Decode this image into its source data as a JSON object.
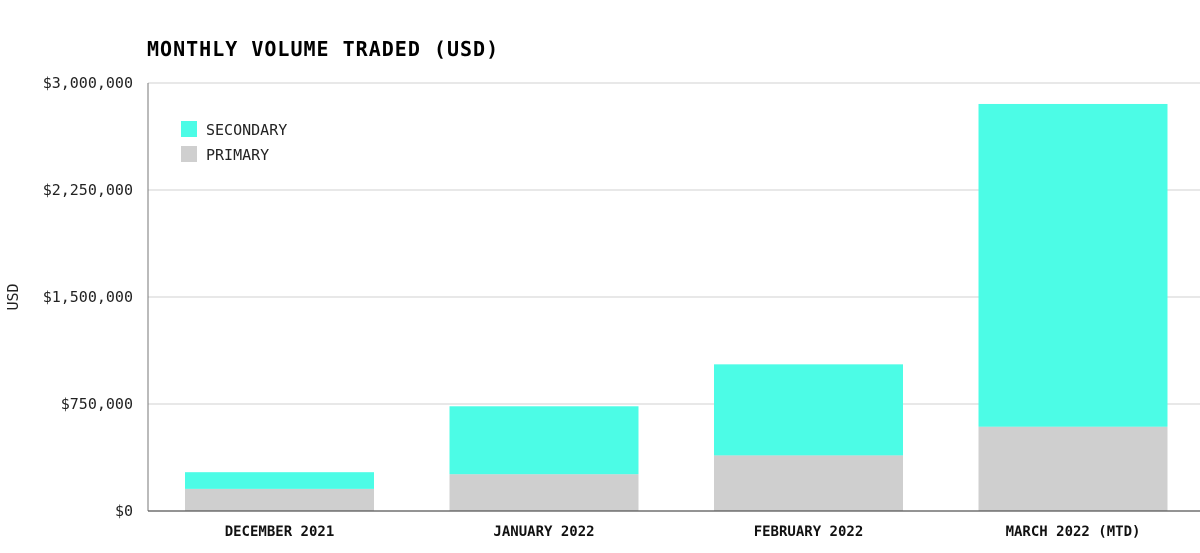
{
  "chart_data": {
    "type": "bar",
    "stacked": true,
    "title": "MONTHLY VOLUME TRADED (USD)",
    "xlabel": "",
    "ylabel": "USD",
    "ylim": [
      0,
      3000000
    ],
    "yticks": [
      0,
      750000,
      1500000,
      2250000,
      3000000
    ],
    "ytick_labels": [
      "$0",
      "$750,000",
      "$1,500,000",
      "$2,250,000",
      "$3,000,000"
    ],
    "grid": "horizontal",
    "legend_position": "top-left",
    "categories": [
      "DECEMBER 2021",
      "JANUARY 2022",
      "FEBRUARY 2022",
      "MARCH 2022 (MTD)"
    ],
    "series": [
      {
        "name": "PRIMARY",
        "color": "#cfcfcf",
        "values": [
          155000,
          258000,
          390000,
          591000
        ]
      },
      {
        "name": "SECONDARY",
        "color": "#4cfce6",
        "values": [
          117000,
          476000,
          638000,
          2262000
        ]
      }
    ],
    "legend_order": [
      "SECONDARY",
      "PRIMARY"
    ]
  }
}
